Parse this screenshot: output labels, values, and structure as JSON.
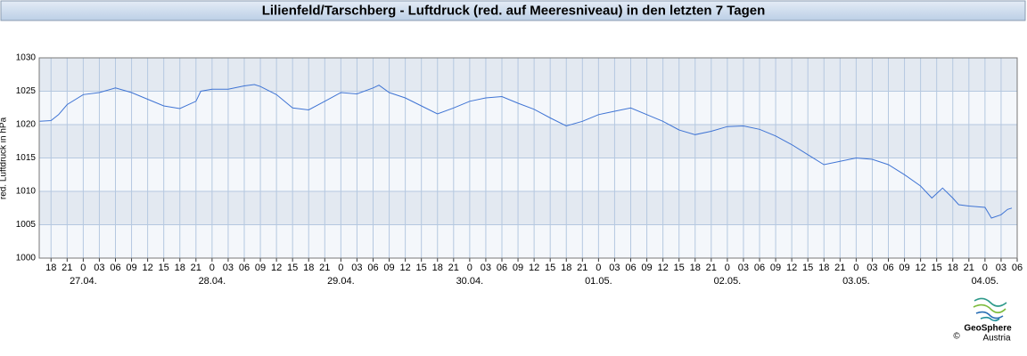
{
  "chart_data": {
    "type": "line",
    "title": "Lilienfeld/Tarschberg - Luftdruck (red. auf Meeresniveau) in den letzten 7 Tagen",
    "ylabel": "red. Luftdruck in hPa",
    "x": [
      15.9,
      18,
      19.4,
      21,
      24,
      27,
      30,
      33,
      36,
      39,
      42,
      45,
      45.9,
      48,
      51,
      54,
      55.9,
      57,
      60,
      63,
      66,
      69,
      72,
      75,
      78,
      79.1,
      81,
      84,
      87,
      90,
      93,
      96,
      99,
      102,
      105,
      108,
      111,
      114,
      117,
      120,
      123,
      126,
      129,
      132,
      135,
      138,
      141,
      144,
      147,
      150,
      153,
      156,
      159,
      162,
      165,
      168,
      171,
      174,
      177,
      180,
      182.1,
      184.1,
      186,
      187.1,
      189,
      192,
      193.2,
      195,
      196.2,
      197
    ],
    "series": [
      {
        "name": "Luftdruck",
        "color": "#3f74d4",
        "values": [
          1020.5,
          1020.6,
          1021.5,
          1023,
          1024.5,
          1024.8,
          1025.5,
          1024.8,
          1023.8,
          1022.8,
          1022.4,
          1023.5,
          1025,
          1025.3,
          1025.3,
          1025.8,
          1026,
          1025.7,
          1024.5,
          1022.5,
          1022.2,
          1023.5,
          1024.8,
          1024.6,
          1025.5,
          1025.9,
          1024.8,
          1024,
          1022.8,
          1021.6,
          1022.5,
          1023.5,
          1024,
          1024.2,
          1023.2,
          1022.3,
          1021,
          1019.8,
          1020.5,
          1021.5,
          1022,
          1022.5,
          1021.5,
          1020.5,
          1019.2,
          1018.5,
          1019,
          1019.7,
          1019.8,
          1019.3,
          1018.3,
          1017,
          1015.5,
          1014,
          1014.5,
          1015,
          1014.8,
          1014,
          1012.5,
          1010.8,
          1009,
          1010.5,
          1009,
          1008,
          1007.8,
          1007.6,
          1006,
          1006.5,
          1007.3,
          1007.5
        ]
      }
    ],
    "xlim": [
      15.8,
      198
    ],
    "xticks": [
      {
        "value": 18,
        "label": "18"
      },
      {
        "value": 21,
        "label": "21"
      },
      {
        "value": 24,
        "label": "0"
      },
      {
        "value": 27,
        "label": "03"
      },
      {
        "value": 30,
        "label": "06"
      },
      {
        "value": 33,
        "label": "09"
      },
      {
        "value": 36,
        "label": "12"
      },
      {
        "value": 39,
        "label": "15"
      },
      {
        "value": 42,
        "label": "18"
      },
      {
        "value": 45,
        "label": "21"
      },
      {
        "value": 48,
        "label": "0"
      },
      {
        "value": 51,
        "label": "03"
      },
      {
        "value": 54,
        "label": "06"
      },
      {
        "value": 57,
        "label": "09"
      },
      {
        "value": 60,
        "label": "12"
      },
      {
        "value": 63,
        "label": "15"
      },
      {
        "value": 66,
        "label": "18"
      },
      {
        "value": 69,
        "label": "21"
      },
      {
        "value": 72,
        "label": "0"
      },
      {
        "value": 75,
        "label": "03"
      },
      {
        "value": 78,
        "label": "06"
      },
      {
        "value": 81,
        "label": "09"
      },
      {
        "value": 84,
        "label": "12"
      },
      {
        "value": 87,
        "label": "15"
      },
      {
        "value": 90,
        "label": "18"
      },
      {
        "value": 93,
        "label": "21"
      },
      {
        "value": 96,
        "label": "0"
      },
      {
        "value": 99,
        "label": "03"
      },
      {
        "value": 102,
        "label": "06"
      },
      {
        "value": 105,
        "label": "09"
      },
      {
        "value": 108,
        "label": "12"
      },
      {
        "value": 111,
        "label": "15"
      },
      {
        "value": 114,
        "label": "18"
      },
      {
        "value": 117,
        "label": "21"
      },
      {
        "value": 120,
        "label": "0"
      },
      {
        "value": 123,
        "label": "03"
      },
      {
        "value": 126,
        "label": "06"
      },
      {
        "value": 129,
        "label": "09"
      },
      {
        "value": 132,
        "label": "12"
      },
      {
        "value": 135,
        "label": "15"
      },
      {
        "value": 138,
        "label": "18"
      },
      {
        "value": 141,
        "label": "21"
      },
      {
        "value": 144,
        "label": "0"
      },
      {
        "value": 147,
        "label": "03"
      },
      {
        "value": 150,
        "label": "06"
      },
      {
        "value": 153,
        "label": "09"
      },
      {
        "value": 156,
        "label": "12"
      },
      {
        "value": 159,
        "label": "15"
      },
      {
        "value": 162,
        "label": "18"
      },
      {
        "value": 165,
        "label": "21"
      },
      {
        "value": 168,
        "label": "0"
      },
      {
        "value": 171,
        "label": "03"
      },
      {
        "value": 174,
        "label": "06"
      },
      {
        "value": 177,
        "label": "09"
      },
      {
        "value": 180,
        "label": "12"
      },
      {
        "value": 183,
        "label": "15"
      },
      {
        "value": 186,
        "label": "18"
      },
      {
        "value": 189,
        "label": "21"
      },
      {
        "value": 192,
        "label": "0"
      },
      {
        "value": 195,
        "label": "03"
      },
      {
        "value": 198,
        "label": "06"
      }
    ],
    "date_labels": [
      {
        "value": 24,
        "label": "27.04."
      },
      {
        "value": 48,
        "label": "28.04."
      },
      {
        "value": 72,
        "label": "29.04."
      },
      {
        "value": 96,
        "label": "30.04."
      },
      {
        "value": 120,
        "label": "01.05."
      },
      {
        "value": 144,
        "label": "02.05."
      },
      {
        "value": 168,
        "label": "03.05."
      },
      {
        "value": 192,
        "label": "04.05."
      }
    ],
    "ylim": [
      1000,
      1030
    ],
    "yticks": [
      1000,
      1005,
      1010,
      1015,
      1020,
      1025,
      1030
    ],
    "grid": true,
    "band_colors": [
      "#f4f7fb",
      "#e3e9f1"
    ],
    "logo": {
      "name": "GeoSphere",
      "sub": "Austria",
      "copyright": "©"
    }
  }
}
